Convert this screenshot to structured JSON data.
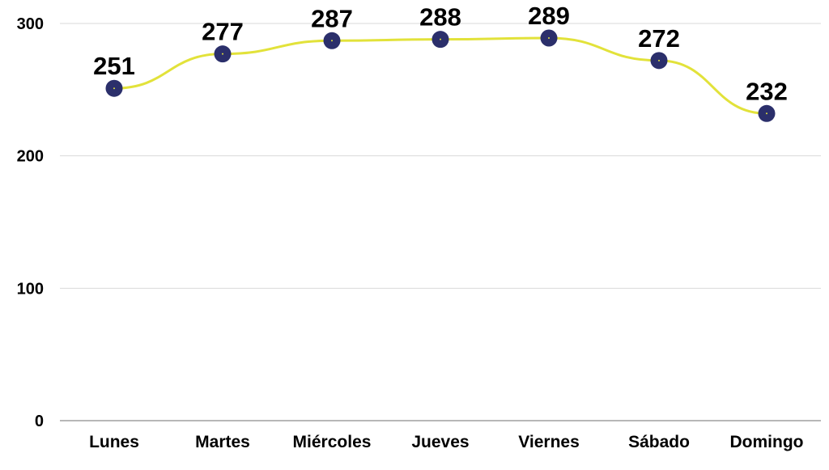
{
  "chart_data": {
    "type": "line",
    "title": "",
    "xlabel": "",
    "ylabel": "",
    "categories": [
      "Lunes",
      "Martes",
      "Miércoles",
      "Jueves",
      "Viernes",
      "Sábado",
      "Domingo"
    ],
    "series": [
      {
        "values": [
          251,
          277,
          287,
          288,
          289,
          272,
          232
        ]
      }
    ],
    "ylim": [
      0,
      300
    ],
    "yticks": [
      0,
      100,
      200,
      300
    ],
    "grid": true,
    "legend": "none",
    "data_labels": true,
    "colors": {
      "line": "#e2e23a",
      "marker": "#2b2f6b",
      "marker_center": "#e2e23a",
      "grid": "#d9d9d9",
      "axis": "#8c8c8c",
      "text": "#000000"
    }
  }
}
